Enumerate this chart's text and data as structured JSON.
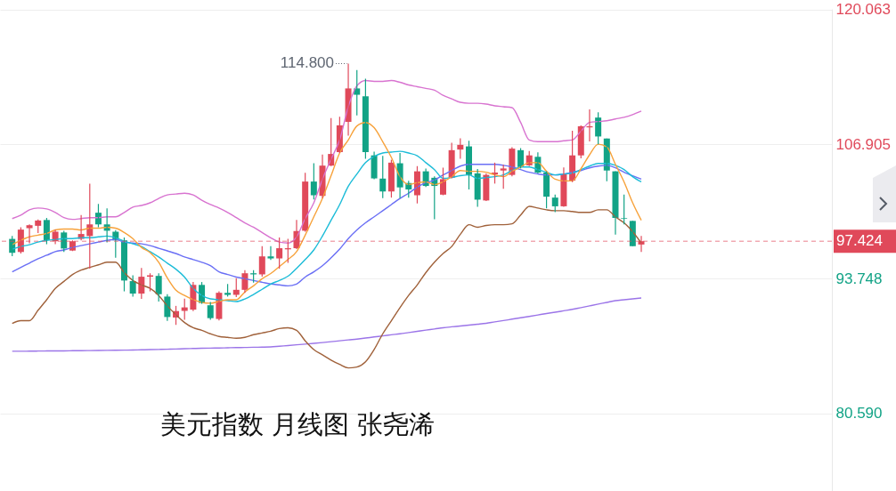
{
  "chart_data": {
    "type": "candlestick",
    "title": "美元指数 月线图 张尧浠",
    "categories": [
      null,
      null,
      null,
      null,
      null,
      null,
      null,
      null,
      null,
      null,
      null,
      null,
      null,
      null,
      null,
      null,
      null,
      null,
      null,
      null,
      null,
      null,
      null,
      null,
      null,
      null,
      null,
      null,
      null,
      null,
      null,
      null,
      null,
      null,
      null,
      null,
      null,
      null,
      null,
      null,
      null,
      null,
      null,
      null,
      null,
      null,
      null,
      null,
      null,
      null,
      null,
      null,
      null,
      null,
      null,
      null,
      null,
      null,
      null,
      null,
      null,
      null,
      null,
      null,
      null,
      null,
      null,
      null,
      null,
      null,
      null,
      null,
      null,
      null
    ],
    "ohlc": [
      [
        97.65,
        97.93,
        95.97,
        96.29
      ],
      [
        96.37,
        98.79,
        96.23,
        98.56
      ],
      [
        98.7,
        99.07,
        97.22,
        98.99
      ],
      [
        98.93,
        99.56,
        98.22,
        99.45
      ],
      [
        99.5,
        99.7,
        97.13,
        97.51
      ],
      [
        97.42,
        98.56,
        97.13,
        98.36
      ],
      [
        98.28,
        98.45,
        96.37,
        96.71
      ],
      [
        96.51,
        97.51,
        96.46,
        97.42
      ],
      [
        97.65,
        99.98,
        97.51,
        98.13
      ],
      [
        97.93,
        103.06,
        94.75,
        99.07
      ],
      [
        100.21,
        101.07,
        98.79,
        99.07
      ],
      [
        99.07,
        100.64,
        97.31,
        98.45
      ],
      [
        98.36,
        98.5,
        95.8,
        97.51
      ],
      [
        97.51,
        97.79,
        92.52,
        93.58
      ],
      [
        93.52,
        94.09,
        92.01,
        92.3
      ],
      [
        92.3,
        94.8,
        91.78,
        93.95
      ],
      [
        93.95,
        94.29,
        92.52,
        94.09
      ],
      [
        94.03,
        94.29,
        91.53,
        92.24
      ],
      [
        92.01,
        92.24,
        89.62,
        90.01
      ],
      [
        89.96,
        91.1,
        89.24,
        90.59
      ],
      [
        90.61,
        91.8,
        89.73,
        90.95
      ],
      [
        90.73,
        93.43,
        90.59,
        93.15
      ],
      [
        93.15,
        93.43,
        91.3,
        91.38
      ],
      [
        91.16,
        91.47,
        89.73,
        89.9
      ],
      [
        89.82,
        92.52,
        89.67,
        92.38
      ],
      [
        92.38,
        93.24,
        92.01,
        92.18
      ],
      [
        92.18,
        93.81,
        91.95,
        92.67
      ],
      [
        92.67,
        94.58,
        92.38,
        94.29
      ],
      [
        94.29,
        94.58,
        93.38,
        94.18
      ],
      [
        94.18,
        96.94,
        93.95,
        95.94
      ],
      [
        95.94,
        96.94,
        95.6,
        95.74
      ],
      [
        95.74,
        97.79,
        94.75,
        96.74
      ],
      [
        96.63,
        97.65,
        95.31,
        96.74
      ],
      [
        96.74,
        99.5,
        96.65,
        98.42
      ],
      [
        98.45,
        104.11,
        98.36,
        103.26
      ],
      [
        103.26,
        105.05,
        101.5,
        101.92
      ],
      [
        101.86,
        105.91,
        101.63,
        104.82
      ],
      [
        104.82,
        109.47,
        104.77,
        105.96
      ],
      [
        106.14,
        109.61,
        106.05,
        108.76
      ],
      [
        109.1,
        114.8,
        107.76,
        112.37
      ],
      [
        112.37,
        114.17,
        109.72,
        111.75
      ],
      [
        111.6,
        113.31,
        105.48,
        106.14
      ],
      [
        105.82,
        106.19,
        103.49,
        103.57
      ],
      [
        103.55,
        105.77,
        101.63,
        102.29
      ],
      [
        102.29,
        105.39,
        101.69,
        105.11
      ],
      [
        105.05,
        106.05,
        101.63,
        102.69
      ],
      [
        103.12,
        103.34,
        101.69,
        102.49
      ],
      [
        101.92,
        104.77,
        101.12,
        104.26
      ],
      [
        104.26,
        104.54,
        102.72,
        102.83
      ],
      [
        103.63,
        103.77,
        99.58,
        102.83
      ],
      [
        101.98,
        104.62,
        101.92,
        103.49
      ],
      [
        103.63,
        107.05,
        103.57,
        106.33
      ],
      [
        106.39,
        107.48,
        105.48,
        106.85
      ],
      [
        106.7,
        107.25,
        102.49,
        103.91
      ],
      [
        104.06,
        104.48,
        100.78,
        101.49
      ],
      [
        101.41,
        104.06,
        101.35,
        103.91
      ],
      [
        103.97,
        105.11,
        103.06,
        104.14
      ],
      [
        104.34,
        104.91,
        102.55,
        104.54
      ],
      [
        103.91,
        106.62,
        103.77,
        106.48
      ],
      [
        106.33,
        106.53,
        104.54,
        104.68
      ],
      [
        104.85,
        106.25,
        104.77,
        105.82
      ],
      [
        105.68,
        106.11,
        104.06,
        104.14
      ],
      [
        104.14,
        104.26,
        100.64,
        101.78
      ],
      [
        101.69,
        101.98,
        100.27,
        100.84
      ],
      [
        100.84,
        104.63,
        100.78,
        103.97
      ],
      [
        103.35,
        108.24,
        103.2,
        105.82
      ],
      [
        105.82,
        108.76,
        105.54,
        108.67
      ],
      [
        108.56,
        110.32,
        107.19,
        108.67
      ],
      [
        109.52,
        110.04,
        106.91,
        107.67
      ],
      [
        107.47,
        107.47,
        103.29,
        104.34
      ],
      [
        104.26,
        104.26,
        98.08,
        99.7
      ],
      [
        99.7,
        101.98,
        99.07,
        99.64
      ],
      [
        99.41,
        99.41,
        96.94,
        96.94
      ],
      [
        97.1,
        97.93,
        96.37,
        97.424
      ]
    ],
    "colors": [
      "#12a386",
      "#e0495a",
      "#e0495a",
      "#e0495a",
      "#12a386",
      "#e0495a",
      "#12a386",
      "#e0495a",
      "#e0495a",
      "#e0495a",
      "#12a386",
      "#12a386",
      "#12a386",
      "#12a386",
      "#12a386",
      "#e0495a",
      "#e0495a",
      "#12a386",
      "#12a386",
      "#e0495a",
      "#e0495a",
      "#e0495a",
      "#12a386",
      "#12a386",
      "#e0495a",
      "#12a386",
      "#e0495a",
      "#e0495a",
      "#12a386",
      "#e0495a",
      "#12a386",
      "#e0495a",
      "#e0495a",
      "#e0495a",
      "#e0495a",
      "#12a386",
      "#e0495a",
      "#e0495a",
      "#e0495a",
      "#e0495a",
      "#12a386",
      "#12a386",
      "#12a386",
      "#12a386",
      "#e0495a",
      "#12a386",
      "#12a386",
      "#e0495a",
      "#12a386",
      "#12a386",
      "#e0495a",
      "#e0495a",
      "#e0495a",
      "#12a386",
      "#12a386",
      "#e0495a",
      "#e0495a",
      "#e0495a",
      "#e0495a",
      "#12a386",
      "#e0495a",
      "#12a386",
      "#12a386",
      "#12a386",
      "#e0495a",
      "#e0495a",
      "#e0495a",
      "#e0495a",
      "#12a386",
      "#12a386",
      "#12a386",
      "#12a386",
      "#12a386",
      "#e0495a"
    ],
    "series": [
      {
        "type": "line",
        "color": "#9b74e8",
        "values": [
          86.66,
          86.66,
          86.67,
          86.68,
          86.69,
          86.7,
          86.7,
          86.71,
          86.72,
          86.73,
          86.74,
          86.75,
          86.76,
          86.77,
          86.78,
          86.8,
          86.82,
          86.84,
          86.86,
          86.88,
          86.91,
          86.93,
          86.95,
          86.97,
          86.98,
          87.0,
          87.02,
          87.03,
          87.05,
          87.06,
          87.08,
          87.15,
          87.22,
          87.29,
          87.36,
          87.43,
          87.51,
          87.6,
          87.68,
          87.77,
          87.85,
          87.95,
          88.06,
          88.16,
          88.27,
          88.37,
          88.49,
          88.61,
          88.73,
          88.84,
          88.96,
          89.05,
          89.13,
          89.22,
          89.3,
          89.39,
          89.53,
          89.66,
          89.8,
          89.93,
          90.07,
          90.21,
          90.35,
          90.48,
          90.62,
          90.76,
          90.93,
          91.1,
          91.27,
          91.44,
          91.61,
          91.7,
          91.78,
          91.87
        ]
      },
      {
        "type": "line",
        "color": "#d873d0",
        "values": [
          99.64,
          99.98,
          100.5,
          100.67,
          100.58,
          100.24,
          99.73,
          99.56,
          99.64,
          99.73,
          99.73,
          99.81,
          99.81,
          100.24,
          100.75,
          100.92,
          101.18,
          101.61,
          101.95,
          102.04,
          102.12,
          101.95,
          101.44,
          101.01,
          100.67,
          100.24,
          99.73,
          99.22,
          98.79,
          98.28,
          97.76,
          97.34,
          97.25,
          97.85,
          99.64,
          101.18,
          103.49,
          105.45,
          107.33,
          110.58,
          112.63,
          113.14,
          113.06,
          113.06,
          113.14,
          112.97,
          112.71,
          112.54,
          112.37,
          112.2,
          111.69,
          111.35,
          111.01,
          110.92,
          110.92,
          110.84,
          110.67,
          110.58,
          110.49,
          109.04,
          107.33,
          107.16,
          107.16,
          107.16,
          107.25,
          107.33,
          108.19,
          109.04,
          109.13,
          109.21,
          109.38,
          109.55,
          109.81,
          110.15
        ]
      },
      {
        "type": "line",
        "color": "#a0613a",
        "values": [
          89.39,
          89.65,
          89.65,
          90.67,
          91.7,
          92.81,
          93.49,
          94.17,
          94.6,
          94.86,
          95.11,
          95.37,
          95.37,
          94.35,
          93.58,
          93.15,
          92.81,
          92.12,
          91.1,
          90.24,
          89.47,
          88.96,
          88.71,
          88.37,
          88.11,
          88.02,
          87.94,
          88.02,
          88.28,
          88.45,
          88.62,
          88.88,
          88.96,
          88.71,
          87.68,
          86.83,
          86.31,
          85.8,
          85.37,
          85.03,
          85.12,
          85.63,
          86.83,
          88.37,
          89.65,
          90.93,
          92.12,
          93.15,
          94.35,
          95.37,
          96.22,
          96.91,
          98.1,
          99.04,
          98.79,
          98.96,
          99.04,
          99.04,
          99.13,
          99.98,
          100.84,
          100.67,
          100.5,
          100.41,
          100.41,
          100.33,
          100.24,
          100.24,
          100.5,
          100.5,
          99.81,
          99.22,
          98.36,
          97.25
        ]
      },
      {
        "type": "line",
        "color": "#6a6ff5",
        "values": [
          94.43,
          94.86,
          95.28,
          95.71,
          96.05,
          96.4,
          96.57,
          96.82,
          96.99,
          97.17,
          97.34,
          97.51,
          97.59,
          97.34,
          97.25,
          97.17,
          96.99,
          96.74,
          96.48,
          96.22,
          95.88,
          95.63,
          95.37,
          95.03,
          94.43,
          94.17,
          93.92,
          93.75,
          93.58,
          93.41,
          93.24,
          93.15,
          93.06,
          93.24,
          93.92,
          94.43,
          95.03,
          95.8,
          96.65,
          97.68,
          98.53,
          99.22,
          99.81,
          100.41,
          101.01,
          101.61,
          102.12,
          102.72,
          103.15,
          103.4,
          103.91,
          104.34,
          104.77,
          104.94,
          104.94,
          104.94,
          104.94,
          104.85,
          104.68,
          104.43,
          104.17,
          104.0,
          103.91,
          103.91,
          104.0,
          104.17,
          104.34,
          104.6,
          104.77,
          104.85,
          104.6,
          104.17,
          103.83,
          103.49
        ]
      },
      {
        "type": "line",
        "color": "#1cbcd8",
        "values": [
          96.65,
          96.91,
          97.08,
          97.34,
          97.51,
          97.59,
          97.68,
          97.68,
          97.76,
          97.76,
          97.85,
          97.93,
          97.76,
          97.42,
          97.17,
          96.91,
          96.4,
          95.88,
          95.28,
          94.69,
          93.92,
          92.81,
          92.12,
          91.78,
          91.7,
          91.61,
          91.52,
          91.78,
          92.21,
          92.72,
          93.24,
          93.58,
          94.0,
          94.77,
          95.63,
          96.57,
          97.93,
          99.47,
          101.01,
          102.8,
          104.0,
          105.11,
          105.71,
          106.05,
          106.14,
          106.22,
          106.05,
          105.79,
          105.11,
          104.43,
          103.57,
          103.66,
          103.83,
          103.91,
          103.57,
          103.66,
          103.74,
          103.91,
          104.34,
          104.68,
          104.68,
          104.43,
          104.17,
          103.91,
          104.0,
          104.09,
          104.43,
          104.77,
          105.03,
          105.03,
          104.85,
          104.43,
          103.74,
          103.23
        ]
      },
      {
        "type": "line",
        "color": "#f7a23b",
        "values": [
          97.08,
          97.51,
          97.85,
          98.02,
          98.19,
          98.53,
          98.62,
          98.62,
          98.53,
          98.7,
          98.7,
          98.79,
          98.7,
          98.28,
          97.68,
          96.82,
          96.31,
          95.37,
          93.83,
          92.63,
          92.12,
          91.7,
          91.44,
          91.36,
          91.53,
          91.7,
          91.7,
          92.46,
          93.06,
          93.75,
          94.26,
          94.94,
          95.63,
          96.4,
          98.02,
          99.81,
          101.61,
          103.83,
          106.05,
          107.33,
          108.7,
          109.04,
          108.53,
          107.16,
          105.62,
          103.74,
          102.97,
          103.15,
          103.23,
          102.97,
          103.23,
          103.74,
          104.34,
          104.26,
          104.26,
          104.17,
          103.91,
          103.74,
          104.26,
          104.68,
          105.11,
          105.11,
          104.26,
          103.49,
          103.32,
          103.32,
          104.51,
          105.88,
          106.91,
          106.65,
          104.94,
          103.23,
          101.18,
          99.47
        ]
      }
    ],
    "ylim": [
      72.99,
      120.15
    ],
    "yticks": [
      {
        "value": 80.59,
        "label": "80.590"
      },
      93.748,
      106.905,
      120.063
    ],
    "grid": "y",
    "tick_labels": "y",
    "ref_lines": [
      {
        "axis": "y",
        "value": 97.424,
        "label": "97.424",
        "color": "#e0495a",
        "line_style": "dashed"
      }
    ],
    "annotations": [
      "114.800"
    ]
  }
}
